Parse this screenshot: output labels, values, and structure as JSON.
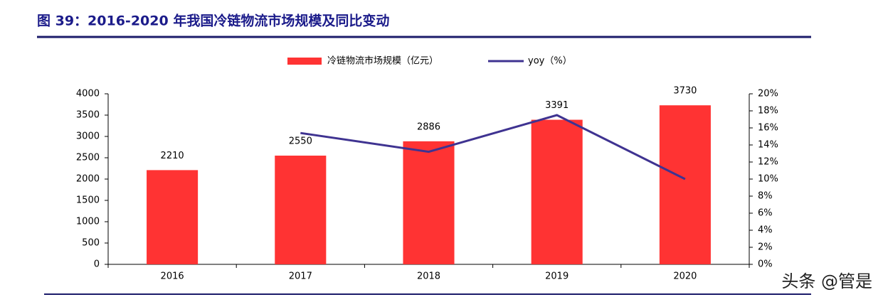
{
  "chart_data": {
    "type": "bar",
    "title": "图 39：2016-2020 年我国冷链物流市场规模及同比变动",
    "categories": [
      "2016",
      "2017",
      "2018",
      "2019",
      "2020"
    ],
    "series": [
      {
        "name": "冷链物流市场规模（亿元）",
        "type": "bar",
        "color": "#ff3333",
        "values": [
          2210,
          2550,
          2886,
          3391,
          3730
        ]
      },
      {
        "name": "yoy（%）",
        "type": "line",
        "axis": "y2",
        "color": "#3f3391",
        "values": [
          null,
          15.4,
          13.2,
          17.5,
          10.0
        ]
      }
    ],
    "ylim": [
      0,
      4000
    ],
    "yticks": [
      0,
      500,
      1000,
      1500,
      2000,
      2500,
      3000,
      3500,
      4000
    ],
    "y2lim": [
      0,
      20
    ],
    "y2ticks": [
      {
        "value": 0,
        "label": "0%"
      },
      {
        "value": 2,
        "label": "2%"
      },
      {
        "value": 4,
        "label": "4%"
      },
      {
        "value": 6,
        "label": "6%"
      },
      {
        "value": 8,
        "label": "8%"
      },
      {
        "value": 10,
        "label": "10%"
      },
      {
        "value": 12,
        "label": "12%"
      },
      {
        "value": 14,
        "label": "14%"
      },
      {
        "value": 16,
        "label": "16%"
      },
      {
        "value": 18,
        "label": "18%"
      },
      {
        "value": 20,
        "label": "20%"
      }
    ],
    "legend": "top"
  },
  "watermark": "头条 @管是"
}
